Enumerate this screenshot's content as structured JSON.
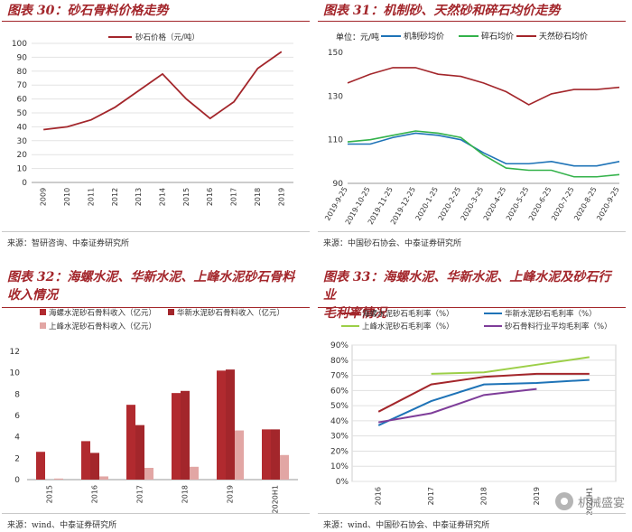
{
  "panels": {
    "p1": {
      "title": "图表 30：砂石骨料价格走势",
      "source": "来源：智研咨询、中泰证券研究所"
    },
    "p2": {
      "title": "图表 31：机制砂、天然砂和碎石均价走势",
      "source": "来源：中国砂石协会、中泰证券研究所"
    },
    "p3": {
      "title_line1": "图表 32：海螺水泥、华新水泥、上峰水泥砂石骨料",
      "title_line2": "收入情况",
      "source": "来源：wind、中泰证券研究所"
    },
    "p4": {
      "title_line1": "图表 33：海螺水泥、华新水泥、上峰水泥及砂石行业",
      "title_line2": "毛利率情况",
      "source": "来源：wind、中国砂石协会、中泰证券研究所"
    }
  },
  "watermark": "机械盛宴",
  "colors": {
    "red": "#a3262b",
    "green": "#33b24a",
    "blue": "#1e73b7",
    "darkred": "#b12a2f",
    "pink": "#e2a6a4",
    "lime": "#9ccf48",
    "purple": "#7e3d99"
  },
  "chart_data": [
    {
      "type": "line",
      "title": "砂石骨料价格走势",
      "categories": [
        "2009",
        "2010",
        "2011",
        "2012",
        "2013",
        "2014",
        "2015",
        "2016",
        "2017",
        "2018",
        "2019"
      ],
      "series": [
        {
          "name": "砂石价格（元/吨）",
          "values": [
            38,
            40,
            45,
            54,
            66,
            78,
            60,
            46,
            58,
            82,
            94
          ]
        }
      ],
      "ylim": [
        0,
        100
      ],
      "yticks": [
        "0",
        "10",
        "20",
        "30",
        "40",
        "50",
        "60",
        "70",
        "80",
        "90",
        "100"
      ]
    },
    {
      "type": "line",
      "title": "机制砂、天然砂和碎石均价走势",
      "unit_label": "单位：元/吨",
      "categories": [
        "2019-9-25",
        "2019-10-25",
        "2019-11-25",
        "2019-12-25",
        "2020-1-25",
        "2020-2-25",
        "2020-3-25",
        "2020-4-25",
        "2020-5-25",
        "2020-6-25",
        "2020-7-25",
        "2020-8-25",
        "2020-9-25"
      ],
      "series": [
        {
          "name": "机制砂均价",
          "values": [
            108,
            108,
            111,
            113,
            112,
            110,
            104,
            99,
            99,
            100,
            98,
            98,
            100
          ]
        },
        {
          "name": "碎石均价",
          "values": [
            109,
            110,
            112,
            114,
            113,
            111,
            103,
            97,
            96,
            96,
            93,
            93,
            94
          ]
        },
        {
          "name": "天然砂石均价",
          "values": [
            136,
            140,
            143,
            143,
            140,
            139,
            136,
            132,
            126,
            131,
            133,
            133,
            134
          ]
        }
      ],
      "ylim": [
        90,
        150
      ],
      "yticks": [
        "90",
        "110",
        "130",
        "150"
      ]
    },
    {
      "type": "bar",
      "title": "海螺水泥、华新水泥、上峰水泥砂石骨料收入情况",
      "categories": [
        "2015",
        "2016",
        "2017",
        "2018",
        "2019",
        "2020H1"
      ],
      "series": [
        {
          "name": "海螺水泥砂石骨料收入（亿元）",
          "values": [
            2.6,
            3.6,
            7.0,
            8.1,
            10.2,
            4.7
          ]
        },
        {
          "name": "华新水泥砂石骨料收入（亿元）",
          "values": [
            0.0,
            2.5,
            5.1,
            8.3,
            10.3,
            4.7
          ]
        },
        {
          "name": "上峰水泥砂石骨料收入（亿元）",
          "values": [
            0.1,
            0.3,
            1.1,
            1.2,
            4.6,
            2.3
          ]
        }
      ],
      "ylim": [
        0,
        12
      ],
      "yticks": [
        "0",
        "2",
        "4",
        "6",
        "8",
        "10",
        "12"
      ]
    },
    {
      "type": "line",
      "title": "海螺水泥、华新水泥、上峰水泥及砂石行业毛利率情况",
      "categories": [
        "2016",
        "2017",
        "2018",
        "2019",
        "2020H1"
      ],
      "series": [
        {
          "name": "海螺水泥砂石毛利率（%）",
          "values": [
            46,
            64,
            69,
            71,
            71
          ]
        },
        {
          "name": "华新水泥砂石毛利率（%）",
          "values": [
            37,
            53,
            64,
            65,
            67
          ]
        },
        {
          "name": "上峰水泥砂石毛利率（%）",
          "values": [
            null,
            71,
            72,
            77,
            82
          ]
        },
        {
          "name": "砂石骨料行业平均毛利率（%）",
          "values": [
            39,
            45,
            57,
            61,
            null
          ]
        }
      ],
      "ylim": [
        0,
        90
      ],
      "yticks": [
        "0%",
        "10%",
        "20%",
        "30%",
        "40%",
        "50%",
        "60%",
        "70%",
        "80%",
        "90%"
      ]
    }
  ]
}
